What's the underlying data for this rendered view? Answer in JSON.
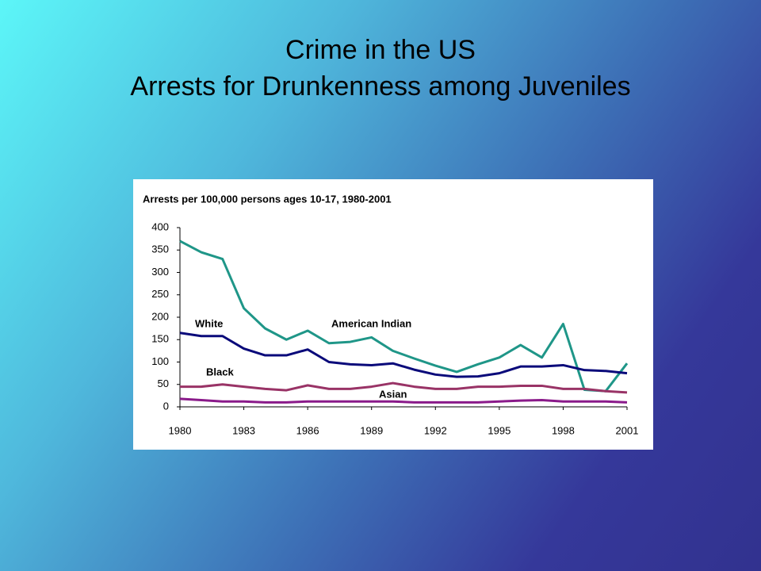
{
  "slide": {
    "title": "Crime in the US",
    "subtitle": "Arrests for Drunkenness among Juveniles"
  },
  "chart_data": {
    "type": "line",
    "title": "Arrests per 100,000 persons ages 10-17, 1980-2001",
    "x": [
      1980,
      1981,
      1982,
      1983,
      1984,
      1985,
      1986,
      1987,
      1988,
      1989,
      1990,
      1991,
      1992,
      1993,
      1994,
      1995,
      1996,
      1997,
      1998,
      1999,
      2000,
      2001
    ],
    "xlim": [
      1980,
      2001
    ],
    "xticks": [
      1980,
      1983,
      1986,
      1989,
      1992,
      1995,
      1998,
      2001
    ],
    "ylim": [
      0,
      400
    ],
    "yticks": [
      0,
      50,
      100,
      150,
      200,
      250,
      300,
      350,
      400
    ],
    "series": [
      {
        "name": "American Indian",
        "color": "#1f9688",
        "values": [
          370,
          345,
          330,
          220,
          175,
          150,
          170,
          142,
          145,
          155,
          125,
          108,
          92,
          78,
          95,
          110,
          138,
          110,
          185,
          38,
          35,
          97
        ]
      },
      {
        "name": "White",
        "color": "#0a0a7a",
        "values": [
          165,
          158,
          158,
          130,
          115,
          115,
          128,
          100,
          95,
          93,
          97,
          83,
          72,
          67,
          68,
          75,
          90,
          90,
          93,
          82,
          80,
          75
        ]
      },
      {
        "name": "Black",
        "color": "#993366",
        "values": [
          45,
          45,
          50,
          45,
          40,
          37,
          48,
          40,
          40,
          45,
          53,
          45,
          40,
          40,
          45,
          45,
          47,
          47,
          40,
          40,
          35,
          32
        ]
      },
      {
        "name": "Asian",
        "color": "#8a1a8a",
        "values": [
          18,
          15,
          12,
          12,
          10,
          10,
          12,
          12,
          12,
          12,
          12,
          10,
          10,
          10,
          10,
          12,
          14,
          15,
          12,
          12,
          12,
          10
        ]
      }
    ]
  }
}
